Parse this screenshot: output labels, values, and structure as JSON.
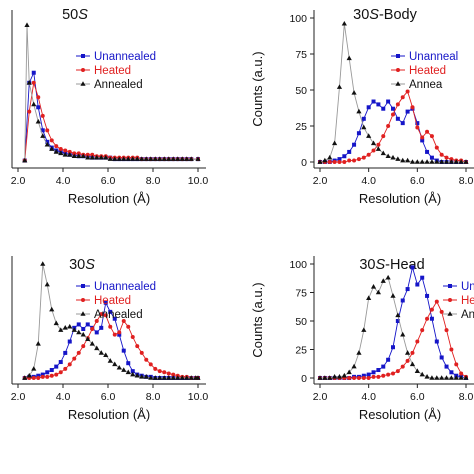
{
  "colors": {
    "Unannealed": "#1515c8",
    "Heated": "#e02020",
    "Annealed": "#111111",
    "Annealed_line": "#999999"
  },
  "chart_data": [
    {
      "type": "line",
      "title_main": "50",
      "title_italic": "S",
      "title_rest": "",
      "xlabel": "Resolution (Å)",
      "ylabel": "",
      "xlim": [
        2.0,
        10.0
      ],
      "ylim": [
        0,
        100
      ],
      "xticks": [
        "2.0",
        "4.0",
        "6.0",
        "8.0",
        "10.0"
      ],
      "yticks": [],
      "legend": {
        "position": "top-right",
        "labels": [
          "Unannealed",
          "Heated",
          "Annealed"
        ]
      },
      "series": [
        {
          "name": "Unannealed",
          "marker": "square",
          "x": [
            2.3,
            2.5,
            2.7,
            2.9,
            3.1,
            3.3,
            3.5,
            3.7,
            3.9,
            4.1,
            4.3,
            4.5,
            4.7,
            4.9,
            5.1,
            5.3,
            5.5,
            5.7,
            5.9,
            6.1,
            6.3,
            6.5,
            6.7,
            6.9,
            7.1,
            7.3,
            7.5,
            7.7,
            7.9,
            8.1,
            8.3,
            8.5,
            8.7,
            8.9,
            9.1,
            9.3,
            9.5,
            9.7,
            10.0
          ],
          "y": [
            1,
            55,
            62,
            38,
            22,
            14,
            10,
            8,
            7,
            6,
            5,
            5,
            4,
            4,
            4,
            3,
            3,
            3,
            3,
            3,
            2,
            2,
            2,
            2,
            2,
            2,
            2,
            2,
            2,
            2,
            2,
            2,
            2,
            2,
            2,
            2,
            2,
            2,
            2
          ]
        },
        {
          "name": "Heated",
          "marker": "circle",
          "x": [
            2.3,
            2.5,
            2.7,
            2.9,
            3.1,
            3.3,
            3.5,
            3.7,
            3.9,
            4.1,
            4.3,
            4.5,
            4.7,
            4.9,
            5.1,
            5.3,
            5.5,
            5.7,
            5.9,
            6.1,
            6.3,
            6.5,
            6.7,
            6.9,
            7.1,
            7.3,
            7.5,
            7.7,
            7.9,
            8.1,
            8.3,
            8.5,
            8.7,
            8.9,
            9.1,
            9.3,
            9.5,
            9.7,
            10.0
          ],
          "y": [
            1,
            35,
            55,
            45,
            32,
            22,
            15,
            11,
            9,
            8,
            7,
            6,
            6,
            5,
            5,
            5,
            4,
            4,
            4,
            3,
            3,
            3,
            3,
            3,
            3,
            3,
            2,
            2,
            2,
            2,
            2,
            2,
            2,
            2,
            2,
            2,
            2,
            2,
            2
          ]
        },
        {
          "name": "Annealed",
          "marker": "triangle",
          "x": [
            2.3,
            2.4,
            2.5,
            2.7,
            2.9,
            3.1,
            3.3,
            3.5,
            3.7,
            3.9,
            4.1,
            4.3,
            4.5,
            4.7,
            4.9,
            5.1,
            5.3,
            5.5,
            5.7,
            5.9,
            6.1,
            6.3,
            6.5,
            6.7,
            6.9,
            7.1,
            7.3,
            7.5,
            7.7,
            7.9,
            8.1,
            8.3,
            8.5,
            8.7,
            8.9,
            9.1,
            9.3,
            9.5,
            9.7,
            10.0
          ],
          "y": [
            1,
            95,
            55,
            40,
            28,
            18,
            12,
            9,
            7,
            6,
            5,
            5,
            4,
            4,
            4,
            3,
            3,
            3,
            3,
            3,
            2,
            2,
            2,
            2,
            2,
            2,
            2,
            2,
            2,
            2,
            2,
            2,
            2,
            2,
            2,
            2,
            2,
            2,
            2,
            2
          ]
        }
      ]
    },
    {
      "type": "line",
      "title_main": "30",
      "title_italic": "S",
      "title_rest": "-Body",
      "xlabel": "Resolution (Å)",
      "ylabel": "Counts (a.u.)",
      "xlim": [
        2.0,
        8.0
      ],
      "ylim": [
        0,
        100
      ],
      "xticks": [
        "2.0",
        "4.0",
        "6.0",
        "8.0"
      ],
      "yticks": [
        "0",
        "25",
        "50",
        "75",
        "100"
      ],
      "legend": {
        "position": "top-right",
        "labels": [
          "Unanneal",
          "Heated",
          "Annea"
        ]
      },
      "series": [
        {
          "name": "Unannealed",
          "marker": "square",
          "x": [
            2.0,
            2.2,
            2.4,
            2.6,
            2.8,
            3.0,
            3.2,
            3.4,
            3.6,
            3.8,
            4.0,
            4.2,
            4.4,
            4.6,
            4.8,
            5.0,
            5.2,
            5.4,
            5.6,
            5.8,
            6.0,
            6.2,
            6.4,
            6.6,
            6.8,
            7.0,
            7.2,
            7.4,
            7.6,
            7.8,
            8.0
          ],
          "y": [
            0,
            0,
            0,
            1,
            2,
            4,
            7,
            12,
            20,
            30,
            38,
            42,
            40,
            37,
            42,
            37,
            30,
            27,
            35,
            37,
            27,
            15,
            7,
            3,
            1,
            0,
            0,
            0,
            0,
            0,
            0
          ]
        },
        {
          "name": "Heated",
          "marker": "circle",
          "x": [
            2.0,
            2.2,
            2.4,
            2.6,
            2.8,
            3.0,
            3.2,
            3.4,
            3.6,
            3.8,
            4.0,
            4.2,
            4.4,
            4.6,
            4.8,
            5.0,
            5.2,
            5.4,
            5.6,
            5.8,
            6.0,
            6.2,
            6.4,
            6.6,
            6.8,
            7.0,
            7.2,
            7.4,
            7.6,
            7.8,
            8.0
          ],
          "y": [
            0,
            0,
            0,
            0,
            0,
            0,
            1,
            1,
            2,
            3,
            5,
            8,
            12,
            18,
            25,
            33,
            40,
            45,
            49,
            38,
            24,
            17,
            21,
            18,
            10,
            5,
            3,
            2,
            1,
            1,
            0
          ]
        },
        {
          "name": "Annealed",
          "marker": "triangle",
          "x": [
            2.0,
            2.2,
            2.4,
            2.6,
            2.8,
            3.0,
            3.2,
            3.4,
            3.6,
            3.8,
            4.0,
            4.2,
            4.4,
            4.6,
            4.8,
            5.0,
            5.2,
            5.4,
            5.6,
            5.8,
            6.0,
            6.2,
            6.4,
            6.6,
            6.8,
            7.0,
            7.2,
            7.4,
            7.6,
            7.8,
            8.0
          ],
          "y": [
            0,
            1,
            3,
            13,
            52,
            96,
            72,
            48,
            35,
            24,
            18,
            13,
            9,
            6,
            4,
            3,
            2,
            1,
            1,
            0,
            0,
            0,
            0,
            0,
            0,
            0,
            0,
            0,
            0,
            0,
            0
          ]
        }
      ]
    },
    {
      "type": "line",
      "title_main": "30",
      "title_italic": "S",
      "title_rest": "",
      "xlabel": "Resolution (Å)",
      "ylabel": "",
      "xlim": [
        2.0,
        10.0
      ],
      "ylim": [
        0,
        100
      ],
      "xticks": [
        "2.0",
        "4.0",
        "6.0",
        "8.0",
        "10.0"
      ],
      "yticks": [],
      "legend": {
        "position": "top-right",
        "labels": [
          "Unannealed",
          "Heated",
          "Annealed"
        ]
      },
      "series": [
        {
          "name": "Unannealed",
          "marker": "square",
          "x": [
            2.3,
            2.5,
            2.7,
            2.9,
            3.1,
            3.3,
            3.5,
            3.7,
            3.9,
            4.1,
            4.3,
            4.5,
            4.7,
            4.9,
            5.1,
            5.3,
            5.5,
            5.7,
            5.9,
            6.1,
            6.3,
            6.5,
            6.7,
            6.9,
            7.1,
            7.3,
            7.5,
            7.7,
            7.9,
            8.1,
            8.3,
            8.5,
            8.7,
            8.9,
            9.1,
            9.3,
            9.5,
            9.7,
            9.9,
            10.0
          ],
          "y": [
            0,
            1,
            1,
            2,
            3,
            5,
            7,
            10,
            14,
            22,
            32,
            44,
            47,
            43,
            47,
            44,
            40,
            44,
            66,
            58,
            52,
            38,
            24,
            13,
            6,
            3,
            2,
            1,
            1,
            0,
            0,
            0,
            0,
            0,
            0,
            0,
            0,
            0,
            0,
            0
          ]
        },
        {
          "name": "Heated",
          "marker": "circle",
          "x": [
            2.3,
            2.5,
            2.7,
            2.9,
            3.1,
            3.3,
            3.5,
            3.7,
            3.9,
            4.1,
            4.3,
            4.5,
            4.7,
            4.9,
            5.1,
            5.3,
            5.5,
            5.7,
            5.9,
            6.1,
            6.3,
            6.5,
            6.7,
            6.9,
            7.1,
            7.3,
            7.5,
            7.7,
            7.9,
            8.1,
            8.3,
            8.5,
            8.7,
            8.9,
            9.1,
            9.3,
            9.5,
            9.7,
            9.9,
            10.0
          ],
          "y": [
            0,
            0,
            0,
            0,
            1,
            1,
            2,
            3,
            5,
            8,
            12,
            17,
            22,
            28,
            35,
            43,
            50,
            56,
            55,
            45,
            38,
            40,
            50,
            45,
            36,
            28,
            22,
            16,
            12,
            8,
            6,
            5,
            4,
            3,
            2,
            1,
            1,
            0,
            0,
            0
          ]
        },
        {
          "name": "Annealed",
          "marker": "triangle",
          "x": [
            2.3,
            2.5,
            2.7,
            2.9,
            3.1,
            3.3,
            3.5,
            3.7,
            3.9,
            4.1,
            4.3,
            4.5,
            4.7,
            4.9,
            5.1,
            5.3,
            5.5,
            5.7,
            5.9,
            6.1,
            6.3,
            6.5,
            6.7,
            6.9,
            7.1,
            7.3,
            7.5,
            7.7,
            7.9,
            8.1,
            8.3,
            8.5,
            8.7,
            8.9,
            9.1,
            9.3,
            9.5,
            9.7,
            9.9,
            10.0
          ],
          "y": [
            0,
            2,
            8,
            30,
            100,
            82,
            60,
            48,
            42,
            44,
            45,
            42,
            40,
            38,
            34,
            30,
            26,
            22,
            20,
            15,
            12,
            9,
            7,
            5,
            3,
            2,
            1,
            1,
            0,
            0,
            0,
            0,
            0,
            0,
            0,
            0,
            0,
            0,
            0,
            0
          ]
        }
      ]
    },
    {
      "type": "line",
      "title_main": "30",
      "title_italic": "S",
      "title_rest": "-Head",
      "xlabel": "Resolution (Å)",
      "ylabel": "Counts (a.u.)",
      "xlim": [
        2.0,
        8.0
      ],
      "ylim": [
        0,
        100
      ],
      "xticks": [
        "2.0",
        "4.0",
        "6.0",
        "8.0"
      ],
      "yticks": [
        "0",
        "25",
        "50",
        "75",
        "100"
      ],
      "legend": {
        "position": "top-right",
        "labels": [
          "Unanne",
          "Heate",
          "Anne"
        ]
      },
      "series": [
        {
          "name": "Unannealed",
          "marker": "square",
          "x": [
            2.0,
            2.2,
            2.4,
            2.6,
            2.8,
            3.0,
            3.2,
            3.4,
            3.6,
            3.8,
            4.0,
            4.2,
            4.4,
            4.6,
            4.8,
            5.0,
            5.2,
            5.4,
            5.6,
            5.8,
            6.0,
            6.2,
            6.4,
            6.6,
            6.8,
            7.0,
            7.2,
            7.4,
            7.6,
            7.8,
            8.0
          ],
          "y": [
            0,
            0,
            0,
            0,
            0,
            0,
            0,
            1,
            1,
            2,
            3,
            5,
            7,
            10,
            16,
            27,
            50,
            68,
            78,
            97,
            82,
            88,
            72,
            52,
            32,
            18,
            10,
            5,
            2,
            1,
            0
          ]
        },
        {
          "name": "Heated",
          "marker": "circle",
          "x": [
            2.0,
            2.2,
            2.4,
            2.6,
            2.8,
            3.0,
            3.2,
            3.4,
            3.6,
            3.8,
            4.0,
            4.2,
            4.4,
            4.6,
            4.8,
            5.0,
            5.2,
            5.4,
            5.6,
            5.8,
            6.0,
            6.2,
            6.4,
            6.6,
            6.8,
            7.0,
            7.2,
            7.4,
            7.6,
            7.8,
            8.0
          ],
          "y": [
            0,
            0,
            0,
            0,
            0,
            0,
            0,
            0,
            0,
            0,
            0,
            1,
            1,
            2,
            3,
            4,
            6,
            10,
            15,
            22,
            32,
            42,
            52,
            60,
            67,
            58,
            42,
            25,
            12,
            4,
            1
          ]
        },
        {
          "name": "Annealed",
          "marker": "triangle",
          "x": [
            2.0,
            2.2,
            2.4,
            2.6,
            2.8,
            3.0,
            3.2,
            3.4,
            3.6,
            3.8,
            4.0,
            4.2,
            4.4,
            4.6,
            4.8,
            5.0,
            5.2,
            5.4,
            5.6,
            5.8,
            6.0,
            6.2,
            6.4,
            6.6,
            6.8,
            7.0,
            7.2,
            7.4,
            7.6,
            7.8,
            8.0
          ],
          "y": [
            0,
            0,
            0,
            1,
            1,
            2,
            5,
            10,
            22,
            42,
            70,
            80,
            75,
            85,
            88,
            72,
            55,
            38,
            22,
            12,
            6,
            3,
            1,
            0,
            0,
            0,
            0,
            0,
            0,
            0,
            0
          ]
        }
      ]
    }
  ]
}
